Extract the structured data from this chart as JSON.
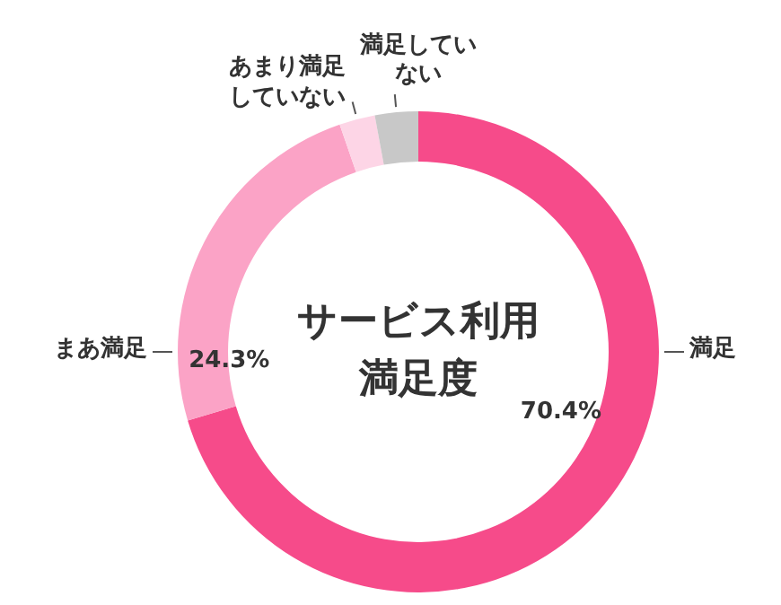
{
  "chart_data": {
    "type": "donut",
    "title": "サービス利用満足度",
    "categories": [
      "満足",
      "まあ満足",
      "あまり満足していない",
      "満足していない"
    ],
    "values": [
      70.4,
      24.3,
      2.4,
      2.9
    ],
    "colors": [
      "#f64b8a",
      "#fba3c6",
      "#fdd5e6",
      "#c8c8c8"
    ],
    "value_labels": [
      "70.4%",
      "24.3%",
      null,
      null
    ]
  }
}
